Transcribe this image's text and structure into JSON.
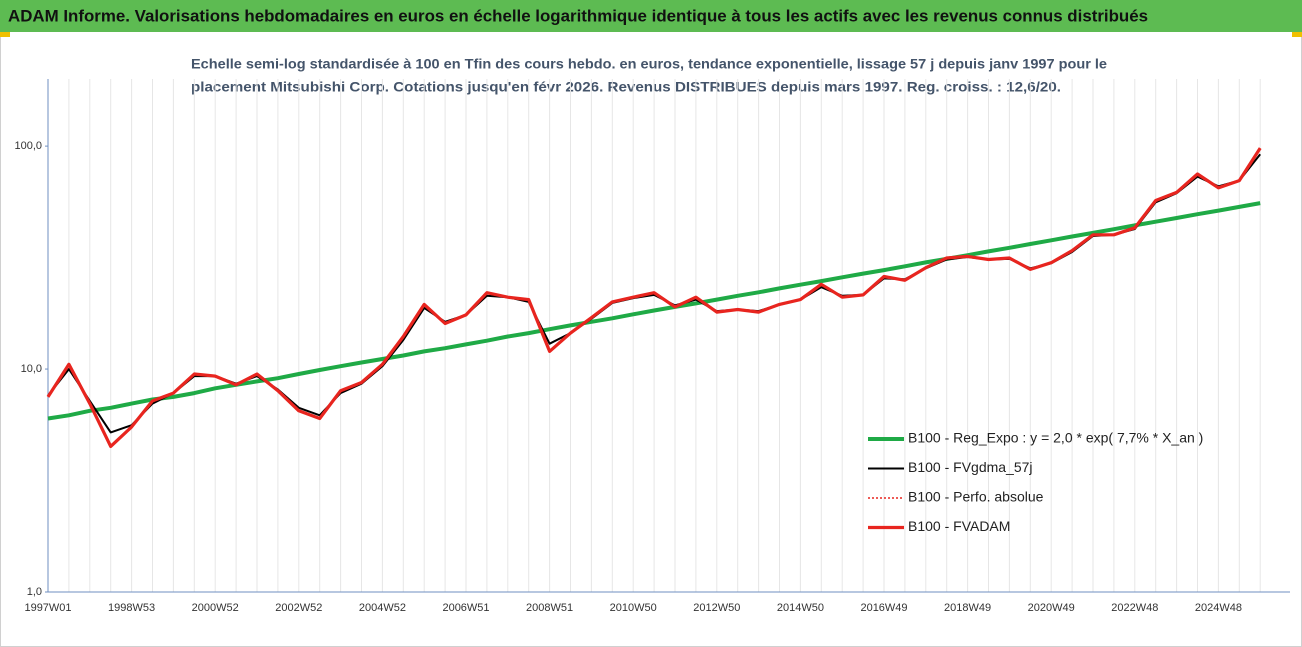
{
  "chart_data": {
    "type": "line",
    "title": "ADAM Informe. Valorisations hebdomadaires en euros en échelle logarithmique identique à tous les actifs avec les revenus connus distribués",
    "subtitle": [
      "Echelle semi-log standardisée à 100 en Tfin des cours hebdo. en euros, tendance exponentielle, lissage 57 j depuis janv 1997 pour le",
      "placement Mitsubishi Corp. Cotations jusqu'en févr 2026. Revenus DISTRIBUES depuis mars 1997. Reg. croiss. : 12,6/20."
    ],
    "categories": [
      "1997W01",
      null,
      null,
      null,
      "1998W53",
      null,
      null,
      null,
      "2000W52",
      null,
      null,
      null,
      "2002W52",
      null,
      null,
      null,
      "2004W52",
      null,
      null,
      null,
      "2006W51",
      null,
      null,
      null,
      "2008W51",
      null,
      null,
      null,
      "2010W50",
      null,
      null,
      null,
      "2012W50",
      null,
      null,
      null,
      "2014W50",
      null,
      null,
      null,
      "2016W49",
      null,
      null,
      null,
      "2018W49",
      null,
      null,
      null,
      "2020W49",
      null,
      null,
      null,
      "2022W48",
      null,
      null,
      null,
      "2024W48",
      null,
      null
    ],
    "log_scale": true,
    "ylim": [
      1,
      200
    ],
    "yticks": [
      {
        "value": 1,
        "label": "1,0"
      },
      {
        "value": 10,
        "label": "10,0"
      },
      {
        "value": 100,
        "label": "100,0"
      }
    ],
    "grid": "x",
    "legend": "right",
    "series": [
      {
        "name": "B100 - Reg_Expo : y = 2,0 * exp( 7,7% *  X_an )",
        "color": "#1faa46",
        "style": "solid",
        "values": [
          6.0,
          6.2,
          6.5,
          6.7,
          7.0,
          7.3,
          7.5,
          7.8,
          8.2,
          8.5,
          8.8,
          9.1,
          9.5,
          9.9,
          10.3,
          10.7,
          11.1,
          11.5,
          12.0,
          12.4,
          12.9,
          13.4,
          14.0,
          14.5,
          15.1,
          15.7,
          16.3,
          16.9,
          17.6,
          18.3,
          19.0,
          19.7,
          20.5,
          21.3,
          22.1,
          23.0,
          23.9,
          24.8,
          25.8,
          26.8,
          27.8,
          28.9,
          30.1,
          31.2,
          32.4,
          33.7,
          35.0,
          36.4,
          37.8,
          39.3,
          40.8,
          42.4,
          44.1,
          45.8,
          47.6,
          49.5,
          51.4,
          53.4,
          55.5
        ]
      },
      {
        "name": "B100 - FVgdma_57j",
        "color": "#000000",
        "style": "solid",
        "values": [
          7.6,
          10.0,
          7.2,
          5.2,
          5.6,
          7.0,
          7.8,
          9.3,
          9.3,
          8.6,
          9.3,
          8.1,
          6.7,
          6.2,
          7.8,
          8.6,
          10.3,
          13.5,
          18.8,
          16.3,
          17.5,
          21.3,
          21.0,
          20.0,
          13.0,
          14.5,
          16.8,
          19.8,
          20.8,
          21.5,
          19.3,
          20.5,
          18.2,
          18.5,
          18.2,
          19.5,
          20.5,
          23.3,
          21.3,
          21.5,
          25.5,
          25.3,
          28.3,
          31.0,
          31.8,
          31.0,
          31.2,
          28.3,
          29.8,
          33.5,
          39.5,
          40.0,
          42.5,
          56.0,
          61.5,
          73.0,
          66.0,
          70.0,
          92.0
        ]
      },
      {
        "name": "B100 - Perfo. absolue",
        "color": "#e8251f",
        "style": "dotted",
        "values": [
          7.5,
          10.5,
          7.0,
          4.5,
          5.5,
          7.2,
          7.8,
          9.5,
          9.3,
          8.5,
          9.5,
          8.0,
          6.5,
          6.0,
          8.0,
          8.7,
          10.5,
          14.0,
          19.5,
          16.0,
          17.5,
          22.0,
          21.0,
          20.5,
          12.0,
          14.5,
          17.0,
          20.0,
          21.0,
          22.0,
          19.0,
          21.0,
          18.0,
          18.5,
          18.0,
          19.5,
          20.5,
          24.0,
          21.0,
          21.5,
          26.0,
          25.0,
          28.5,
          31.5,
          32.0,
          31.0,
          31.5,
          28.0,
          30.0,
          34.0,
          40.0,
          40.0,
          43.0,
          57.0,
          62.0,
          75.0,
          65.0,
          70.0,
          98.0
        ]
      },
      {
        "name": "B100 - FVADAM",
        "color": "#e8251f",
        "style": "thick",
        "values": [
          7.5,
          10.5,
          7.0,
          4.5,
          5.5,
          7.2,
          7.8,
          9.5,
          9.3,
          8.5,
          9.5,
          8.0,
          6.5,
          6.0,
          8.0,
          8.7,
          10.5,
          14.0,
          19.5,
          16.0,
          17.5,
          22.0,
          21.0,
          20.5,
          12.0,
          14.5,
          17.0,
          20.0,
          21.0,
          22.0,
          19.0,
          21.0,
          18.0,
          18.5,
          18.0,
          19.5,
          20.5,
          24.0,
          21.0,
          21.5,
          26.0,
          25.0,
          28.5,
          31.5,
          32.0,
          31.0,
          31.5,
          28.0,
          30.0,
          34.0,
          40.0,
          40.0,
          43.0,
          57.0,
          62.0,
          75.0,
          65.0,
          70.0,
          98.0
        ]
      }
    ]
  }
}
